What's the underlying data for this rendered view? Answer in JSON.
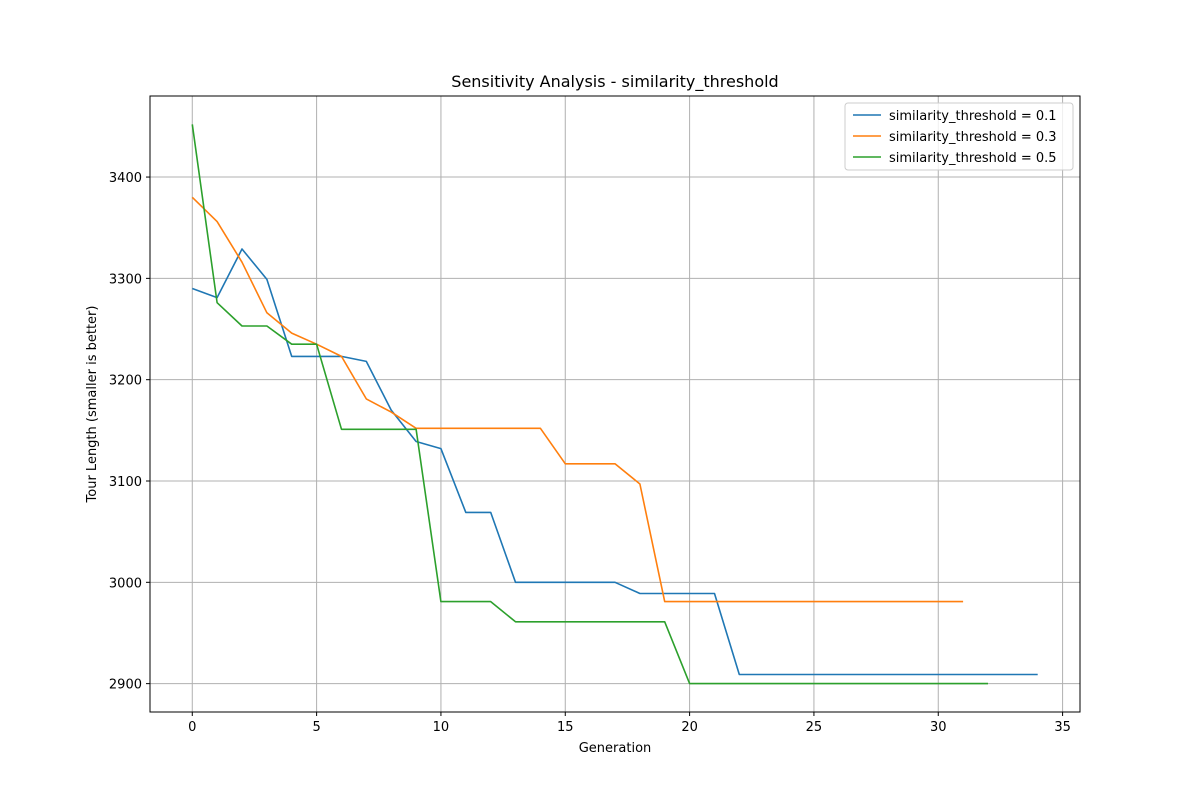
{
  "chart_data": {
    "type": "line",
    "title": "Sensitivity Analysis - similarity_threshold",
    "xlabel": "Generation",
    "ylabel": "Tour Length (smaller is better)",
    "xlim": [
      -1.7,
      35.7
    ],
    "ylim": [
      2872,
      3480
    ],
    "xticks": [
      0,
      5,
      10,
      15,
      20,
      25,
      30,
      35
    ],
    "yticks": [
      2900,
      3000,
      3100,
      3200,
      3300,
      3400
    ],
    "grid": true,
    "legend_position": "top-right",
    "series": [
      {
        "name": "similarity_threshold = 0.1",
        "color": "#1f77b4",
        "x": [
          0,
          1,
          2,
          3,
          4,
          5,
          6,
          7,
          8,
          9,
          10,
          11,
          12,
          13,
          14,
          15,
          16,
          17,
          18,
          19,
          20,
          21,
          22,
          23,
          24,
          25,
          26,
          27,
          28,
          29,
          30,
          31,
          32,
          33,
          34
        ],
        "values": [
          3290,
          3281,
          3329,
          3299,
          3223,
          3223,
          3223,
          3218,
          3170,
          3139,
          3132,
          3069,
          3069,
          3000,
          3000,
          3000,
          3000,
          3000,
          2989,
          2989,
          2989,
          2989,
          2909,
          2909,
          2909,
          2909,
          2909,
          2909,
          2909,
          2909,
          2909,
          2909,
          2909,
          2909,
          2909
        ]
      },
      {
        "name": "similarity_threshold = 0.3",
        "color": "#ff7f0e",
        "x": [
          0,
          1,
          2,
          3,
          4,
          5,
          6,
          7,
          8,
          9,
          10,
          11,
          12,
          13,
          14,
          15,
          16,
          17,
          18,
          19,
          20,
          21,
          22,
          23,
          24,
          25,
          26,
          27,
          28,
          29,
          30,
          31
        ],
        "values": [
          3380,
          3356,
          3316,
          3266,
          3246,
          3235,
          3223,
          3181,
          3168,
          3152,
          3152,
          3152,
          3152,
          3152,
          3152,
          3117,
          3117,
          3117,
          3097,
          2981,
          2981,
          2981,
          2981,
          2981,
          2981,
          2981,
          2981,
          2981,
          2981,
          2981,
          2981,
          2981
        ]
      },
      {
        "name": "similarity_threshold = 0.5",
        "color": "#2ca02c",
        "x": [
          0,
          1,
          2,
          3,
          4,
          5,
          6,
          7,
          8,
          9,
          10,
          11,
          12,
          13,
          14,
          15,
          16,
          17,
          18,
          19,
          20,
          21,
          22,
          23,
          24,
          25,
          26,
          27,
          28,
          29,
          30,
          31,
          32
        ],
        "values": [
          3452,
          3276,
          3253,
          3253,
          3235,
          3235,
          3151,
          3151,
          3151,
          3151,
          2981,
          2981,
          2981,
          2961,
          2961,
          2961,
          2961,
          2961,
          2961,
          2961,
          2900,
          2900,
          2900,
          2900,
          2900,
          2900,
          2900,
          2900,
          2900,
          2900,
          2900,
          2900,
          2900
        ]
      }
    ]
  }
}
